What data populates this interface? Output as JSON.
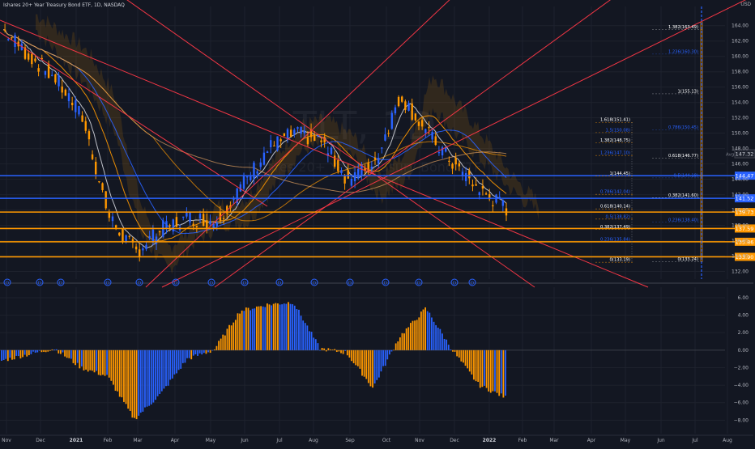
{
  "header": {
    "title": "Ishares 20+ Year Treasury Bond ETF, 1D, NASDAQ",
    "currency": "USD"
  },
  "chart_data": [
    {
      "type": "candlestick",
      "title": "Ishares 20+ Year Treasury Bond ETF, 1D, NASDAQ",
      "ylabel": "USD",
      "ylim": [
        131,
        166.5
      ],
      "y_ticks": [
        132,
        134,
        136,
        138,
        140,
        142,
        144,
        146,
        148,
        150,
        152,
        154,
        156,
        158,
        160,
        162,
        164
      ],
      "x_ticks": [
        "Nov",
        "Dec",
        "2021",
        "Feb",
        "Mar",
        "Apr",
        "May",
        "Jun",
        "Jul",
        "Aug",
        "Sep",
        "Oct",
        "Nov",
        "Dec",
        "2022",
        "Feb",
        "Mar",
        "Apr",
        "May",
        "Jun",
        "Jul",
        "Aug"
      ],
      "price_path": [
        [
          "Nov",
          163.5
        ],
        [
          "Dec",
          160
        ],
        [
          "2021",
          157
        ],
        [
          "Feb",
          152
        ],
        [
          "Mar",
          139
        ],
        [
          "Mar",
          134.5
        ],
        [
          "Apr",
          137.5
        ],
        [
          "May",
          139
        ],
        [
          "Jun",
          138.5
        ],
        [
          "Jul",
          143
        ],
        [
          "Jul",
          148
        ],
        [
          "Aug",
          150
        ],
        [
          "Sep",
          149
        ],
        [
          "Oct",
          144
        ],
        [
          "Nov",
          146
        ],
        [
          "Dec",
          155
        ],
        [
          "Dec",
          150
        ],
        [
          "2022",
          146
        ],
        [
          "2022",
          142.5
        ],
        [
          "Feb",
          140.2
        ]
      ],
      "horizontal_levels": [
        {
          "label": "144.47",
          "value": 144.47,
          "color": "#2962ff"
        },
        {
          "label": "141.52",
          "value": 141.52,
          "color": "#2962ff"
        },
        {
          "label": "139.73",
          "value": 139.73,
          "color": "#ff9800"
        },
        {
          "label": "137.59",
          "value": 137.59,
          "color": "#ff9800"
        },
        {
          "label": "135.86",
          "value": 135.86,
          "color": "#ff9800"
        },
        {
          "label": "133.90",
          "value": 133.9,
          "color": "#ff9800"
        }
      ],
      "last_price_label": "147.32",
      "last_price_tag": "Avg",
      "fib_left": [
        {
          "label": "1.618(151.41)",
          "value": 151.41
        },
        {
          "label": "1.5(150.08)",
          "value": 150.08
        },
        {
          "label": "1.382(148.75)",
          "value": 148.75
        },
        {
          "label": "1.236(147.10)",
          "value": 147.1
        },
        {
          "label": "1(144.45)",
          "value": 144.45
        },
        {
          "label": "0.786(142.04)",
          "value": 142.04
        },
        {
          "label": "0.618(140.14)",
          "value": 140.14
        },
        {
          "label": "0.5(138.82)",
          "value": 138.82
        },
        {
          "label": "0.382(137.49)",
          "value": 137.49
        },
        {
          "label": "0.236(135.84)",
          "value": 135.84
        },
        {
          "label": "0(133.19)",
          "value": 133.19
        }
      ],
      "fib_right": [
        {
          "label": "1.382(163.49)",
          "value": 163.49
        },
        {
          "label": "1.236(160.30)",
          "value": 160.3
        },
        {
          "label": "1(155.13)",
          "value": 155.13
        },
        {
          "label": "0.786(150.45)",
          "value": 150.45
        },
        {
          "label": "0.618(146.77)",
          "value": 146.77
        },
        {
          "label": "0.5(144.18)",
          "value": 144.18
        },
        {
          "label": "0.382(141.60)",
          "value": 141.6
        },
        {
          "label": "0.236(138.40)",
          "value": 138.4
        },
        {
          "label": "0(133.24)",
          "value": 133.24
        }
      ],
      "watermark": "TLT, 1D",
      "watermark_sub": "Ishares 20+ Year Treasury Bond ETF",
      "event_markers": [
        "D",
        "D",
        "D",
        "D",
        "D",
        "D",
        "D",
        "D",
        "D",
        "D",
        "D",
        "D",
        "D",
        "D",
        "D"
      ],
      "grid": true
    },
    {
      "type": "histogram",
      "ylim": [
        -8.8,
        7.2
      ],
      "y_ticks": [
        "6.00",
        "4.00",
        "2.00",
        "0.00",
        "−2.00",
        "−4.00",
        "−6.00",
        "−8.00"
      ],
      "series_colors": {
        "positive_rising": "#ff9800",
        "negative": "#2962ff"
      },
      "values_path": [
        [
          "Nov",
          -1.2
        ],
        [
          "Dec",
          -0.5
        ],
        [
          "Dec",
          0.2
        ],
        [
          "2021",
          -2
        ],
        [
          "Feb",
          -3
        ],
        [
          "Mar",
          -7.9
        ],
        [
          "Apr",
          -5
        ],
        [
          "May",
          -1
        ],
        [
          "Jun",
          0
        ],
        [
          "Jul",
          4.5
        ],
        [
          "Jul",
          5.2
        ],
        [
          "Aug",
          5.5
        ],
        [
          "Sep",
          0.2
        ],
        [
          "Oct",
          -0.3
        ],
        [
          "Nov",
          -4.3
        ],
        [
          "Nov",
          1.5
        ],
        [
          "Dec",
          4.8
        ],
        [
          "2022",
          0
        ],
        [
          "2022",
          -4
        ],
        [
          "Feb",
          -5.4
        ]
      ]
    }
  ]
}
